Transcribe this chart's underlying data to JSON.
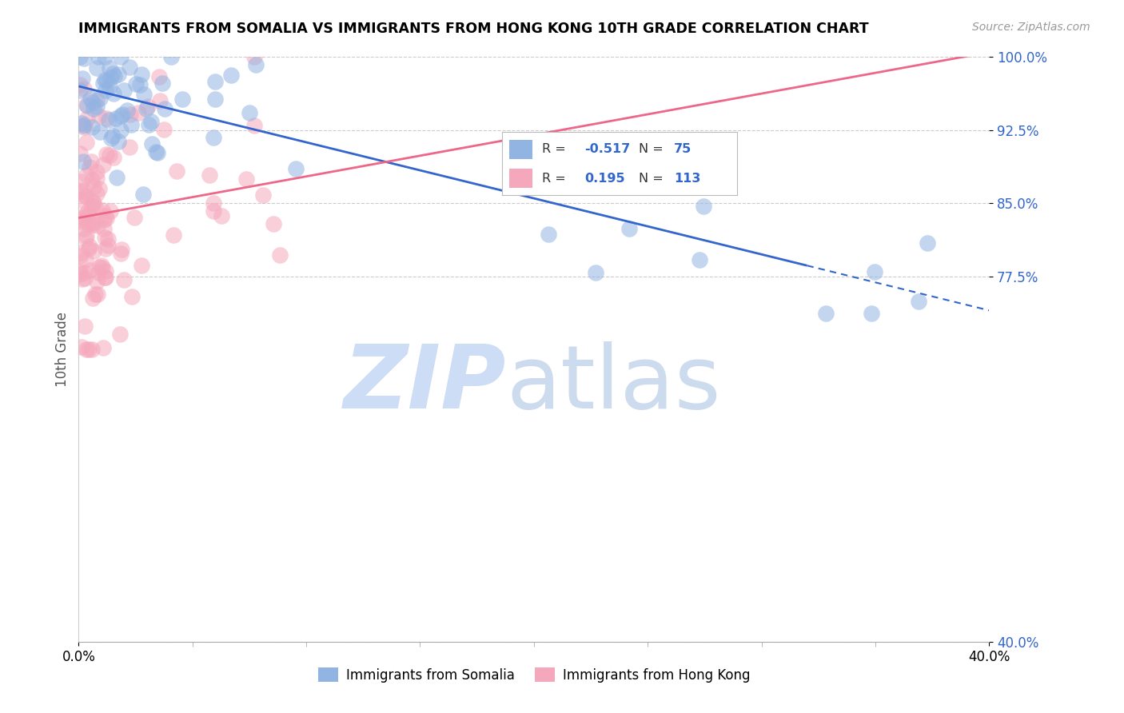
{
  "title": "IMMIGRANTS FROM SOMALIA VS IMMIGRANTS FROM HONG KONG 10TH GRADE CORRELATION CHART",
  "source": "Source: ZipAtlas.com",
  "ylabel": "10th Grade",
  "y_ticks": [
    40.0,
    77.5,
    85.0,
    92.5,
    100.0
  ],
  "x_range": [
    0.0,
    40.0
  ],
  "y_range": [
    40.0,
    100.0
  ],
  "somalia_R": -0.517,
  "somalia_N": 75,
  "hongkong_R": 0.195,
  "hongkong_N": 113,
  "somalia_color": "#92B4E3",
  "hongkong_color": "#F5A8BC",
  "somalia_line_color": "#3366CC",
  "hongkong_line_color": "#EE6688",
  "ytick_color": "#3366CC",
  "watermark_zip_color": "#CCDDF5",
  "watermark_atlas_color": "#C8D8EE",
  "legend_label_somalia": "Immigrants from Somalia",
  "legend_label_hongkong": "Immigrants from Hong Kong",
  "somalia_line_x0": 0.0,
  "somalia_line_y0": 97.0,
  "somalia_line_x1": 40.0,
  "somalia_line_y1": 74.0,
  "somalia_line_solid_end": 32.0,
  "hongkong_line_x0": 0.0,
  "hongkong_line_y0": 83.5,
  "hongkong_line_x1": 40.0,
  "hongkong_line_y1": 100.5,
  "legend_R_somalia": "-0.517",
  "legend_N_somalia": "75",
  "legend_R_hongkong": "0.195",
  "legend_N_hongkong": "113"
}
